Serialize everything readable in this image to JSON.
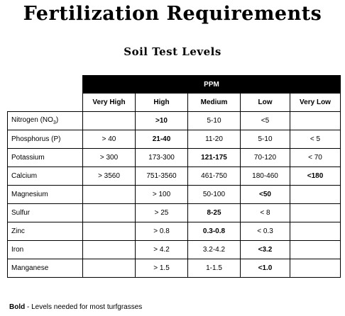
{
  "title": "Fertilization Requirements",
  "subtitle": "Soil Test Levels",
  "table": {
    "group_header": "PPM",
    "columns": [
      "Very High",
      "High",
      "Medium",
      "Low",
      "Very Low"
    ],
    "rows": [
      {
        "label": "Nitrogen (NO",
        "label_sub": "3",
        "label_end": ")",
        "values": [
          "",
          ">10",
          "5-10",
          "<5",
          ""
        ],
        "bold_index": 1
      },
      {
        "label": "Phosphorus (P)",
        "values": [
          "> 40",
          "21-40",
          "11-20",
          "5-10",
          "< 5"
        ],
        "bold_index": 1
      },
      {
        "label": "Potassium",
        "values": [
          "> 300",
          "173-300",
          "121-175",
          "70-120",
          "< 70"
        ],
        "bold_index": 2
      },
      {
        "label": "Calcium",
        "values": [
          "> 3560",
          "751-3560",
          "461-750",
          "180-460",
          "<180"
        ],
        "bold_index": 4
      },
      {
        "label": "Magnesium",
        "values": [
          "",
          "> 100",
          "50-100",
          "<50",
          ""
        ],
        "bold_index": 3
      },
      {
        "label": "Sulfur",
        "values": [
          "",
          "> 25",
          "8-25",
          "< 8",
          ""
        ],
        "bold_index": 2
      },
      {
        "label": "Zinc",
        "values": [
          "",
          "> 0.8",
          "0.3-0.8",
          "< 0.3",
          ""
        ],
        "bold_index": 2
      },
      {
        "label": "Iron",
        "values": [
          "",
          "> 4.2",
          "3.2-4.2",
          "<3.2",
          ""
        ],
        "bold_index": 3
      },
      {
        "label": "Manganese",
        "values": [
          "",
          "> 1.5",
          "1-1.5",
          "<1.0",
          ""
        ],
        "bold_index": 3
      }
    ]
  },
  "footnote": {
    "bold": "Bold",
    "text": " - Levels needed for most turfgrasses"
  }
}
